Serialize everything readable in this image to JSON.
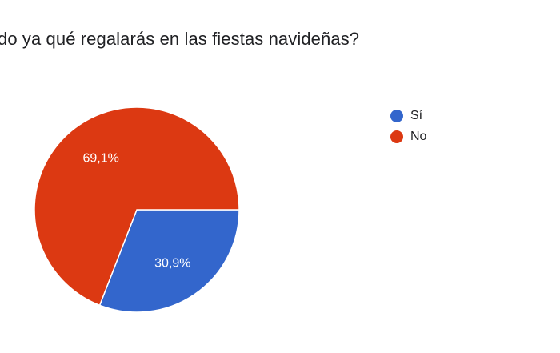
{
  "question": "do ya qué regalarás en las fiestas navideñas?",
  "colors": {
    "si": "#3366cc",
    "no": "#dc3912"
  },
  "chart_data": {
    "type": "pie",
    "title": "",
    "categories": [
      "Sí",
      "No"
    ],
    "values": [
      30.9,
      69.1
    ],
    "labels": [
      "30,9%",
      "69,1%"
    ],
    "colors": [
      "#3366cc",
      "#dc3912"
    ],
    "legend_position": "right"
  },
  "legend": {
    "items": [
      {
        "label": "Sí"
      },
      {
        "label": "No"
      }
    ]
  }
}
